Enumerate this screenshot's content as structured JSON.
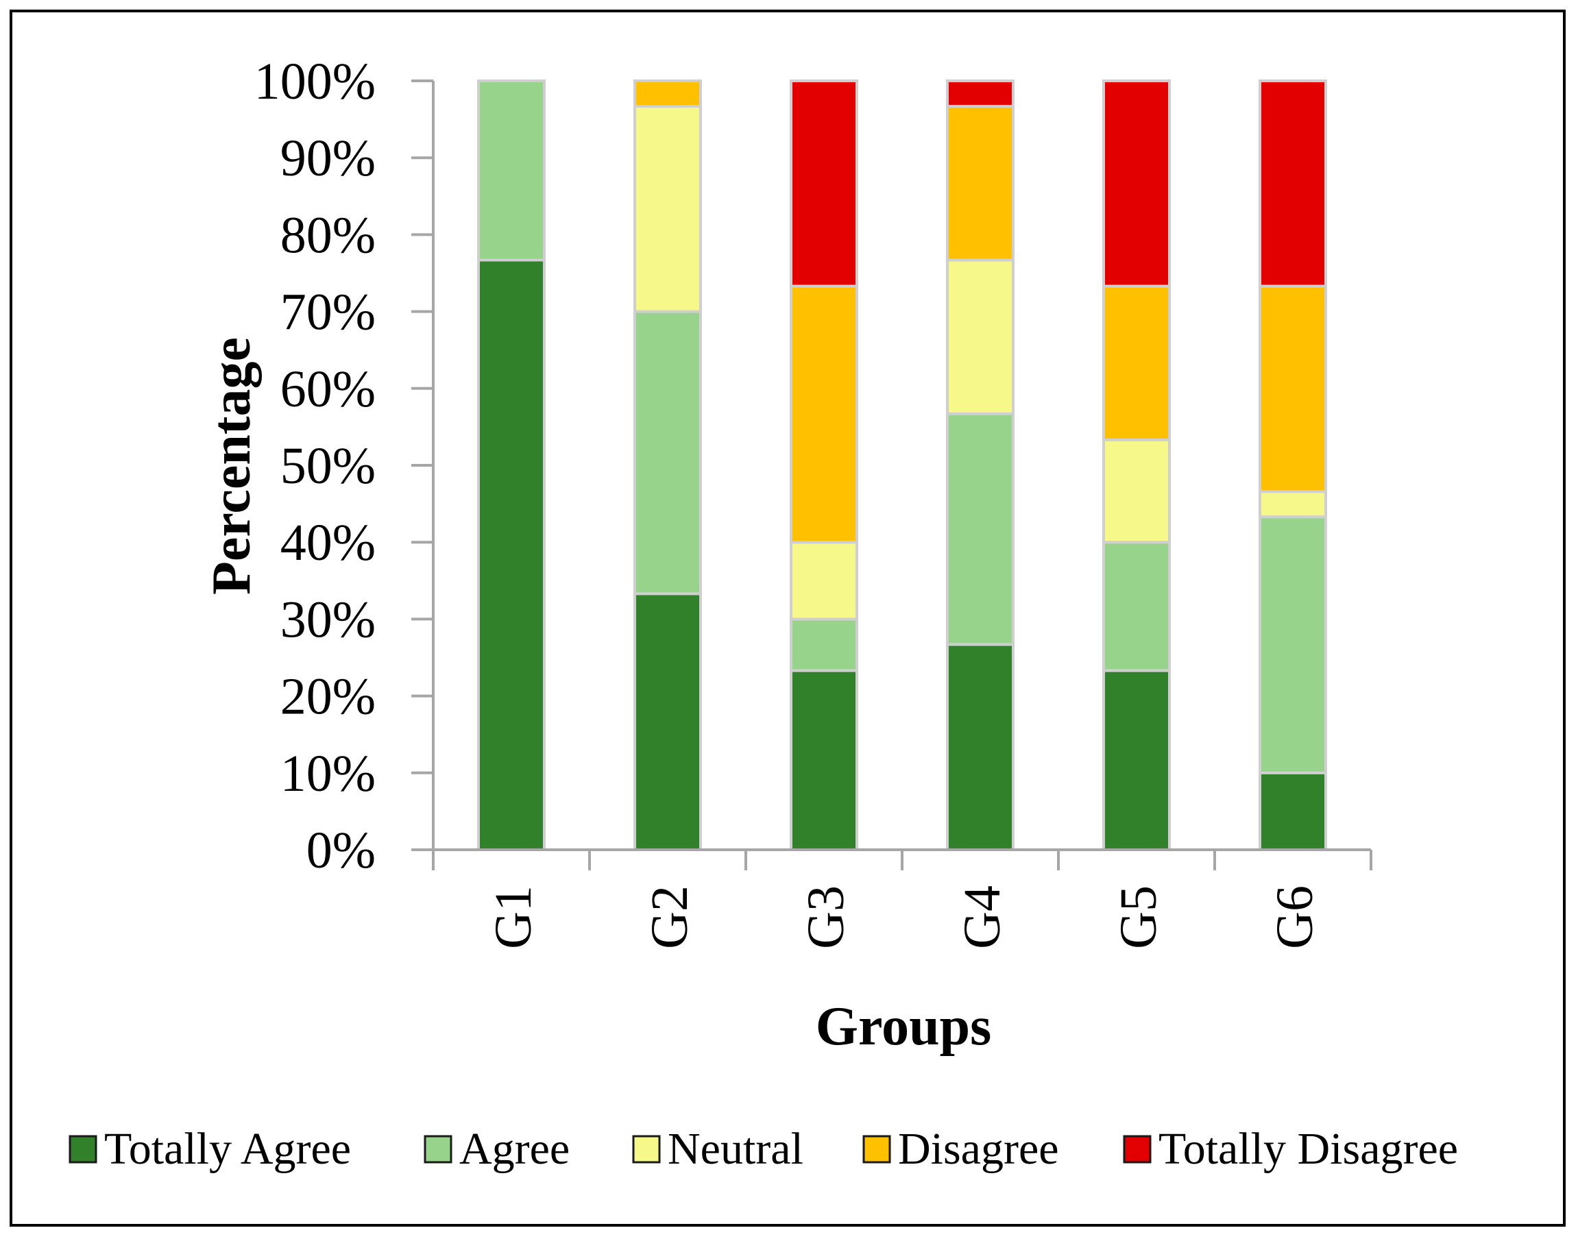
{
  "chart_data": {
    "type": "bar",
    "stacked": true,
    "normalized": true,
    "title": "",
    "xlabel": "Groups",
    "ylabel": "Percentage",
    "ylim": [
      0,
      100
    ],
    "y_ticks": [
      "0%",
      "10%",
      "20%",
      "30%",
      "40%",
      "50%",
      "60%",
      "70%",
      "80%",
      "90%",
      "100%"
    ],
    "categories": [
      "G1",
      "G2",
      "G3",
      "G4",
      "G5",
      "G6"
    ],
    "series": [
      {
        "name": "Totally Agree",
        "color": "#31812A",
        "values": [
          76.7,
          33.3,
          23.3,
          26.7,
          23.3,
          10.0
        ]
      },
      {
        "name": "Agree",
        "color": "#98D38C",
        "values": [
          23.3,
          36.7,
          6.7,
          30.0,
          16.7,
          33.3
        ]
      },
      {
        "name": "Neutral",
        "color": "#F6F98A",
        "values": [
          0,
          26.7,
          10.0,
          20.0,
          13.3,
          3.3
        ]
      },
      {
        "name": "Disagree",
        "color": "#FFC000",
        "values": [
          0,
          3.3,
          33.3,
          20.0,
          20.0,
          26.7
        ]
      },
      {
        "name": "Totally Disagree",
        "color": "#E30000",
        "values": [
          0,
          0,
          26.7,
          3.3,
          26.7,
          26.7
        ]
      }
    ],
    "legend_position": "bottom",
    "grid": false
  }
}
